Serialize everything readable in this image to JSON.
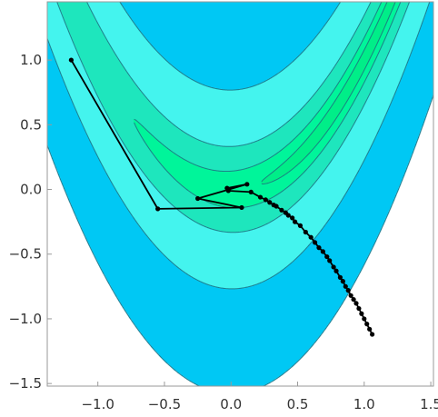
{
  "chart_data": {
    "type": "contour",
    "function": "rosenbrock",
    "title": "",
    "xlabel": "",
    "ylabel": "",
    "xlim": [
      -1.38,
      1.52
    ],
    "ylim": [
      -1.52,
      1.45
    ],
    "x_ticks": [
      -1.0,
      -0.5,
      0.0,
      0.5,
      1.0,
      1.5
    ],
    "x_tick_labels": [
      "−1.0",
      "−0.5",
      "0.0",
      "0.5",
      "1.0",
      "1.5"
    ],
    "y_ticks": [
      -1.5,
      -1.0,
      -0.5,
      0.0,
      0.5,
      1.0
    ],
    "y_tick_labels": [
      "−1.5",
      "−1.0",
      "−0.5",
      "0.0",
      "0.5",
      "1.0"
    ],
    "contour_levels": [
      0.6,
      3,
      12,
      60,
      250
    ],
    "region_colors": [
      "#00ee88",
      "#00f59a",
      "#1ee6bd",
      "#44f4ee",
      "#00c8f4",
      "#ffffff"
    ],
    "contour_color": "#1f6f7f",
    "path_color": "#000000",
    "optimization_path": {
      "x": [
        -1.2,
        -0.55,
        0.08,
        -0.25,
        0.12,
        -0.03,
        -0.02,
        0.15,
        0.22,
        0.26,
        0.29,
        0.32,
        0.34,
        0.38,
        0.41,
        0.43,
        0.46,
        0.48,
        0.52,
        0.56,
        0.6,
        0.63,
        0.66,
        0.69,
        0.72,
        0.74,
        0.77,
        0.79,
        0.82,
        0.84,
        0.86,
        0.88,
        0.9,
        0.92,
        0.94,
        0.96,
        0.98,
        1.0,
        1.02,
        1.04,
        1.06
      ],
      "y": [
        1.0,
        -0.15,
        -0.14,
        -0.07,
        0.04,
        0.01,
        -0.01,
        -0.02,
        -0.06,
        -0.08,
        -0.1,
        -0.12,
        -0.13,
        -0.16,
        -0.18,
        -0.2,
        -0.22,
        -0.25,
        -0.28,
        -0.33,
        -0.37,
        -0.41,
        -0.45,
        -0.48,
        -0.52,
        -0.55,
        -0.6,
        -0.63,
        -0.68,
        -0.71,
        -0.75,
        -0.78,
        -0.82,
        -0.85,
        -0.88,
        -0.92,
        -0.96,
        -1.0,
        -1.04,
        -1.08,
        -1.12
      ]
    }
  }
}
